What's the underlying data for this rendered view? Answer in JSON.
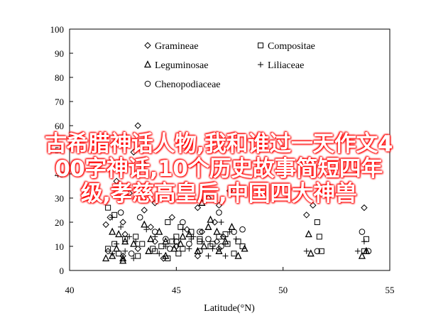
{
  "overlay": {
    "lines": [
      "古希腊神话人物,我和谁过一天作文4",
      "00字神话,10个历史故事简短四年",
      "级,孝慈高皇后,中国四大神兽"
    ],
    "color": "#ffffff",
    "glow": "#ff0000"
  },
  "chart_data": {
    "type": "scatter",
    "title": "",
    "xlabel": "Latitude(°N)",
    "ylabel": "",
    "xlim": [
      40,
      55
    ],
    "ylim": [
      0,
      100
    ],
    "xticks": [
      "40",
      "45",
      "50",
      "55"
    ],
    "yticks": [
      "0",
      "10",
      "20",
      "30",
      "40",
      "50",
      "60",
      "70",
      "80",
      "90",
      "100"
    ],
    "grid": false,
    "legend_position": "top-center",
    "series": [
      {
        "name": "Gramineae",
        "marker": "diamond",
        "points": [
          [
            43.2,
            60
          ],
          [
            43.0,
            49
          ],
          [
            43.5,
            44
          ],
          [
            42.2,
            37
          ],
          [
            42.8,
            32
          ],
          [
            44.0,
            28
          ],
          [
            43.5,
            25
          ],
          [
            41.9,
            22
          ],
          [
            42.5,
            20
          ],
          [
            44.8,
            22
          ],
          [
            46.0,
            26
          ],
          [
            46.5,
            30
          ],
          [
            47.0,
            27
          ],
          [
            47.5,
            33
          ],
          [
            43.8,
            18
          ],
          [
            41.7,
            19
          ],
          [
            45.5,
            17
          ],
          [
            42.6,
            15
          ],
          [
            46.8,
            20
          ],
          [
            46.2,
            16
          ],
          [
            47.2,
            14
          ],
          [
            44.0,
            12
          ],
          [
            45.0,
            10
          ],
          [
            43.2,
            9
          ],
          [
            41.8,
            8
          ],
          [
            42.5,
            6
          ],
          [
            46.0,
            6
          ],
          [
            47.0,
            9
          ],
          [
            44.4,
            5
          ],
          [
            46.9,
            12
          ],
          [
            51.1,
            23
          ],
          [
            51.4,
            27
          ],
          [
            53.8,
            26
          ]
        ]
      },
      {
        "name": "Compositae",
        "marker": "square",
        "points": [
          [
            41.8,
            9
          ],
          [
            42.1,
            11
          ],
          [
            42.6,
            13
          ],
          [
            43.1,
            14
          ],
          [
            43.4,
            11
          ],
          [
            43.9,
            9
          ],
          [
            44.3,
            10
          ],
          [
            44.8,
            12
          ],
          [
            45.0,
            14
          ],
          [
            45.3,
            9
          ],
          [
            45.7,
            16
          ],
          [
            46.1,
            12
          ],
          [
            46.6,
            10
          ],
          [
            47.0,
            14
          ],
          [
            47.4,
            11
          ],
          [
            47.9,
            12
          ],
          [
            48.1,
            10
          ],
          [
            41.8,
            26
          ],
          [
            42.1,
            23
          ],
          [
            44.6,
            20
          ],
          [
            45.2,
            18
          ],
          [
            42.3,
            7
          ],
          [
            43.2,
            6
          ],
          [
            44.0,
            8
          ],
          [
            44.6,
            5
          ],
          [
            45.1,
            7
          ],
          [
            46.1,
            13
          ],
          [
            46.7,
            11
          ],
          [
            47.3,
            15
          ],
          [
            47.7,
            7
          ],
          [
            51.6,
            20
          ],
          [
            51.7,
            14
          ],
          [
            51.8,
            8
          ],
          [
            53.9,
            13
          ],
          [
            53.8,
            8
          ]
        ]
      },
      {
        "name": "Leguminosae",
        "marker": "triangle",
        "points": [
          [
            42.0,
            16
          ],
          [
            42.3,
            15
          ],
          [
            42.6,
            12
          ],
          [
            42.2,
            9
          ],
          [
            42.0,
            6
          ],
          [
            42.5,
            4
          ],
          [
            43.0,
            11
          ],
          [
            43.5,
            19
          ],
          [
            43.8,
            13
          ],
          [
            44.2,
            16
          ],
          [
            44.5,
            12
          ],
          [
            44.9,
            9
          ],
          [
            45.2,
            11
          ],
          [
            45.6,
            15
          ],
          [
            46.0,
            8
          ],
          [
            46.3,
            10
          ],
          [
            46.6,
            21
          ],
          [
            46.9,
            16
          ],
          [
            47.3,
            12
          ],
          [
            47.6,
            18
          ],
          [
            47.9,
            6
          ],
          [
            48.2,
            9
          ],
          [
            42.5,
            5
          ],
          [
            44.5,
            6
          ],
          [
            45.3,
            14
          ],
          [
            46.2,
            28
          ],
          [
            46.5,
            18
          ],
          [
            47.0,
            8
          ],
          [
            43.7,
            8
          ],
          [
            41.7,
            5
          ],
          [
            51.2,
            15
          ],
          [
            51.3,
            7
          ],
          [
            53.7,
            6
          ],
          [
            53.9,
            8
          ]
        ]
      },
      {
        "name": "Liliaceae",
        "marker": "plus",
        "points": [
          [
            42.0,
            22
          ],
          [
            42.4,
            18
          ],
          [
            42.8,
            14
          ],
          [
            42.2,
            11
          ],
          [
            42.6,
            8
          ],
          [
            43.1,
            12
          ],
          [
            43.6,
            17
          ],
          [
            44.0,
            14
          ],
          [
            44.5,
            10
          ],
          [
            44.9,
            13
          ],
          [
            45.3,
            17
          ],
          [
            45.8,
            14
          ],
          [
            46.2,
            12
          ],
          [
            46.7,
            9
          ],
          [
            47.1,
            20
          ],
          [
            47.5,
            16
          ],
          [
            47.8,
            13
          ],
          [
            42.0,
            7
          ],
          [
            43.0,
            5
          ],
          [
            44.2,
            7
          ],
          [
            45.6,
            9
          ],
          [
            46.5,
            6
          ],
          [
            47.3,
            6
          ],
          [
            45.7,
            13
          ],
          [
            51.1,
            8
          ],
          [
            53.8,
            12
          ],
          [
            53.5,
            8
          ]
        ]
      },
      {
        "name": "Chenopodiaceae",
        "marker": "circle",
        "points": [
          [
            42.4,
            24
          ],
          [
            43.3,
            22
          ],
          [
            44.0,
            16
          ],
          [
            44.5,
            13
          ],
          [
            45.3,
            20
          ],
          [
            45.6,
            11
          ],
          [
            46.1,
            16
          ],
          [
            46.5,
            13
          ],
          [
            47.0,
            24
          ],
          [
            47.7,
            16
          ],
          [
            48.1,
            17
          ],
          [
            42.9,
            7
          ],
          [
            44.7,
            9
          ],
          [
            45.0,
            12
          ],
          [
            46.1,
            8
          ],
          [
            47.1,
            10
          ],
          [
            51.6,
            8
          ],
          [
            53.7,
            16
          ],
          [
            54.0,
            8
          ]
        ]
      }
    ]
  }
}
